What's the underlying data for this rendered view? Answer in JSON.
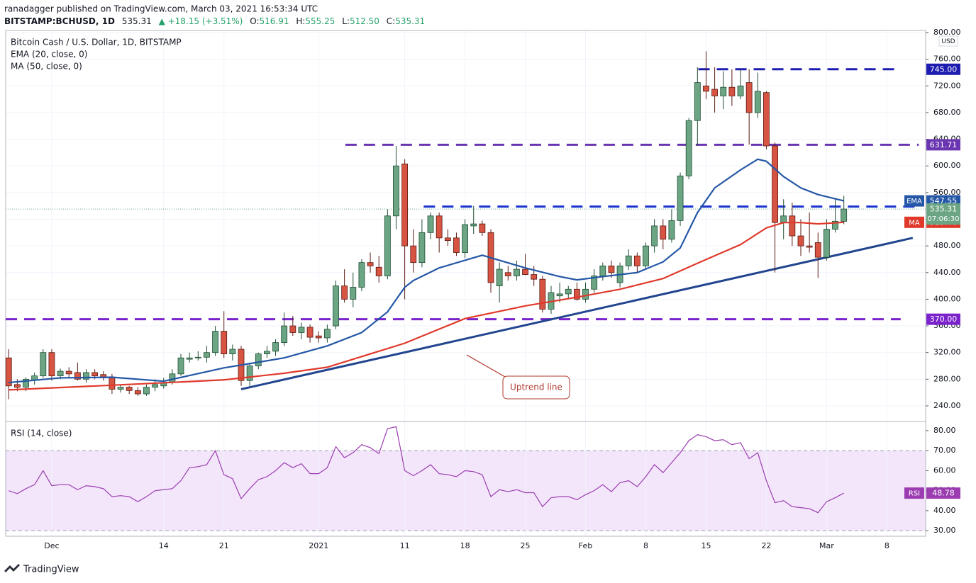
{
  "header": {
    "publisher": "ranadagger published on TradingView.com, March 03, 2021 16:53:34 UTC",
    "symbol": "BITSTAMP:BCHUSD, 1D",
    "last": "535.31",
    "change": "▲ +18.15 (+3.51%)",
    "ohlc": [
      {
        "key": "O:",
        "value": "516.91"
      },
      {
        "key": "H:",
        "value": "555.25"
      },
      {
        "key": "L:",
        "value": "512.50"
      },
      {
        "key": "C:",
        "value": "535.31"
      }
    ]
  },
  "chart_data": [
    {
      "type": "candlestick",
      "title": "Bitcoin Cash / U.S. Dollar, 1D, BITSTAMP",
      "axis_unit": "USD",
      "open": [
        312,
        272,
        268,
        279,
        285,
        320,
        285,
        292,
        290,
        280,
        290,
        287,
        282,
        265,
        268,
        263,
        258,
        268,
        270,
        275,
        288,
        310,
        312,
        313,
        320,
        352,
        318,
        325,
        278,
        300,
        318,
        322,
        335,
        360,
        350,
        358,
        345,
        342,
        360,
        420,
        400,
        418,
        455,
        448,
        435,
        525,
        603,
        480,
        455,
        500,
        525,
        492,
        492,
        470,
        510,
        513,
        500,
        420,
        440,
        435,
        445,
        437,
        430,
        385,
        405,
        408,
        415,
        400,
        415,
        435,
        450,
        425,
        450,
        465,
        450,
        480,
        510,
        490,
        518,
        585,
        668,
        720,
        715,
        705,
        718,
        705,
        725,
        680,
        710,
        630,
        515,
        525,
        495,
        480,
        485,
        463,
        505,
        516.91
      ],
      "high": [
        325,
        280,
        283,
        290,
        325,
        325,
        296,
        298,
        305,
        295,
        295,
        292,
        288,
        272,
        270,
        268,
        272,
        280,
        282,
        295,
        318,
        320,
        322,
        330,
        360,
        382,
        332,
        330,
        305,
        320,
        330,
        340,
        380,
        375,
        365,
        362,
        352,
        362,
        428,
        445,
        440,
        460,
        470,
        465,
        535,
        630,
        610,
        505,
        520,
        530,
        530,
        505,
        500,
        520,
        540,
        518,
        505,
        455,
        450,
        458,
        468,
        450,
        435,
        420,
        425,
        420,
        425,
        425,
        445,
        455,
        458,
        455,
        475,
        470,
        485,
        520,
        520,
        535,
        590,
        672,
        748,
        772,
        748,
        742,
        745,
        745,
        745,
        740,
        712,
        635,
        550,
        545,
        520,
        530,
        500,
        520,
        550,
        555.25
      ],
      "low": [
        250,
        262,
        262,
        272,
        282,
        278,
        280,
        282,
        278,
        275,
        280,
        278,
        258,
        260,
        258,
        255,
        255,
        262,
        266,
        272,
        285,
        305,
        308,
        305,
        315,
        312,
        308,
        270,
        270,
        295,
        312,
        315,
        330,
        345,
        340,
        335,
        335,
        335,
        355,
        395,
        388,
        412,
        440,
        425,
        430,
        505,
        400,
        440,
        448,
        490,
        470,
        480,
        465,
        462,
        498,
        495,
        410,
        395,
        428,
        428,
        436,
        420,
        380,
        378,
        395,
        400,
        398,
        395,
        410,
        428,
        432,
        418,
        444,
        440,
        445,
        470,
        475,
        485,
        510,
        580,
        630,
        700,
        680,
        685,
        690,
        700,
        632,
        672,
        625,
        440,
        490,
        480,
        465,
        470,
        432,
        458,
        500,
        512.5
      ],
      "close": [
        270,
        268,
        280,
        285,
        320,
        285,
        292,
        288,
        280,
        290,
        285,
        282,
        265,
        268,
        263,
        258,
        268,
        272,
        275,
        288,
        312,
        312,
        313,
        320,
        352,
        318,
        325,
        278,
        300,
        318,
        322,
        335,
        360,
        350,
        358,
        343,
        342,
        355,
        420,
        400,
        418,
        455,
        450,
        435,
        525,
        600,
        480,
        455,
        500,
        525,
        492,
        488,
        470,
        512,
        513,
        500,
        425,
        445,
        435,
        445,
        437,
        430,
        385,
        410,
        408,
        415,
        400,
        415,
        435,
        450,
        440,
        450,
        465,
        450,
        480,
        510,
        490,
        518,
        585,
        668,
        725,
        712,
        705,
        718,
        705,
        720,
        680,
        712,
        630,
        515,
        525,
        495,
        480,
        478,
        463,
        505,
        517,
        535.31
      ],
      "up_color": "#6ba583",
      "down_color": "#d75442",
      "xlim": [
        -0.35,
        106.5
      ],
      "xticks": [
        {
          "value": 5,
          "label": "Dec"
        },
        {
          "value": 18,
          "label": "14"
        },
        {
          "value": 25,
          "label": "21"
        },
        {
          "value": 36,
          "label": "2021"
        },
        {
          "value": 46,
          "label": "11"
        },
        {
          "value": 53,
          "label": "18"
        },
        {
          "value": 60,
          "label": "25"
        },
        {
          "value": 67,
          "label": "Feb"
        },
        {
          "value": 74,
          "label": "8"
        },
        {
          "value": 81,
          "label": "15"
        },
        {
          "value": 88,
          "label": "22"
        },
        {
          "value": 95,
          "label": "Mar"
        },
        {
          "value": 102,
          "label": "8"
        }
      ],
      "ylim": [
        216.6,
        803.2
      ],
      "yticks": [
        {
          "value": 240,
          "label": "240.00"
        },
        {
          "value": 280,
          "label": "280.00"
        },
        {
          "value": 320,
          "label": "320.00"
        },
        {
          "value": 360,
          "label": "360.00"
        },
        {
          "value": 400,
          "label": "400.00"
        },
        {
          "value": 440,
          "label": "440.00"
        },
        {
          "value": 480,
          "label": "480.00"
        },
        {
          "value": 520,
          "label": "520.00"
        },
        {
          "value": 560,
          "label": "560.00"
        },
        {
          "value": 600,
          "label": "600.00"
        },
        {
          "value": 640,
          "label": "640.00"
        },
        {
          "value": 680,
          "label": "680.00"
        },
        {
          "value": 720,
          "label": "720.00"
        },
        {
          "value": 760,
          "label": "760.00"
        },
        {
          "value": 800,
          "label": "800.00"
        }
      ],
      "grid": true,
      "series": [
        {
          "name": "EMA (20, close, 0)",
          "color": "#2457a6",
          "x": [
            0,
            6,
            12,
            18,
            25,
            32,
            37,
            41,
            44,
            46,
            47,
            50,
            55,
            60,
            64,
            66,
            69,
            73,
            76,
            78,
            80,
            82,
            85,
            87,
            88,
            90,
            92,
            94,
            97
          ],
          "values": [
            275,
            282,
            283,
            277,
            297,
            312,
            330,
            350,
            381,
            418,
            428,
            447,
            466,
            447,
            434,
            429,
            434,
            440,
            456,
            477,
            530,
            567,
            594,
            610,
            607,
            584,
            567,
            557,
            547.55
          ],
          "badge": {
            "tag": "EMA",
            "label": "547.55"
          }
        },
        {
          "name": "MA (50, close, 0)",
          "color": "#e0392b",
          "x": [
            0,
            12,
            25,
            32,
            37,
            42,
            46,
            53,
            60,
            66,
            71,
            76,
            80,
            85,
            88,
            90,
            92,
            94,
            97
          ],
          "values": [
            264,
            271,
            279,
            289,
            298,
            318,
            334,
            371,
            390,
            403,
            415,
            431,
            454,
            482,
            507,
            515,
            515,
            513,
            515.4
          ],
          "badge": {
            "tag": "MA",
            "label": "515.40"
          }
        }
      ],
      "trendline": {
        "x": [
          27,
          105
        ],
        "values": [
          265,
          492
        ],
        "color": "#22458f"
      },
      "annotation": "Uptrend line",
      "levels": [
        {
          "value": 745,
          "label": "745.00",
          "color": "#1c1cb0",
          "x": [
            80.1,
            103.6
          ]
        },
        {
          "value": 631.71,
          "label": "631.71",
          "color": "#6a35b0",
          "x": [
            39.1,
            105.7
          ]
        },
        {
          "value": 539,
          "label": "539.00",
          "color": "#1b33cf",
          "x": [
            48.2,
            105.7
          ]
        },
        {
          "value": 370,
          "label": "370.00",
          "color": "#7a22cc",
          "x": [
            -0.35,
            103.6
          ]
        }
      ],
      "last": {
        "value": 535.31,
        "label": "535.31",
        "countdown": "07:06:30",
        "color": "#6ba583"
      }
    },
    {
      "type": "line",
      "title": "RSI (14, close)",
      "color": "#9b3db0",
      "values": [
        50,
        48.5,
        51,
        53,
        60,
        52.5,
        53,
        53,
        50.5,
        52.5,
        52,
        51,
        47,
        47.5,
        47,
        44.5,
        47,
        50,
        50.5,
        51,
        55,
        61.5,
        62,
        63,
        70,
        58,
        56,
        46,
        51,
        55.5,
        57,
        60,
        64,
        61.5,
        63.5,
        58.5,
        58.5,
        61.5,
        72,
        66.5,
        69,
        73,
        71.5,
        68.5,
        81,
        82,
        60,
        57.5,
        60,
        63,
        58.5,
        58,
        57,
        60,
        59.5,
        58,
        47,
        50.5,
        49.5,
        50.5,
        49,
        49,
        42,
        46.5,
        47,
        47,
        45.5,
        48,
        50,
        53,
        49.5,
        54,
        55,
        52,
        57,
        63,
        59,
        64,
        69,
        75,
        78,
        77,
        75,
        75.5,
        73,
        74,
        66,
        69,
        55,
        44,
        45,
        42,
        41.5,
        41,
        39,
        44.5,
        46.5,
        48.78
      ],
      "ylim": [
        27.2,
        84.6
      ],
      "yticks": [
        {
          "value": 30,
          "label": "30.00"
        },
        {
          "value": 40,
          "label": "40.00"
        },
        {
          "value": 50,
          "label": "50.00"
        },
        {
          "value": 60,
          "label": "60.00"
        },
        {
          "value": 70,
          "label": "70.00"
        },
        {
          "value": 80,
          "label": "80.00"
        }
      ],
      "band": [
        30,
        70
      ],
      "band_color": "#f3e6fb",
      "badge": {
        "tag": "RSI",
        "label": "48.78"
      }
    }
  ],
  "footer": {
    "brand": "TradingView"
  }
}
